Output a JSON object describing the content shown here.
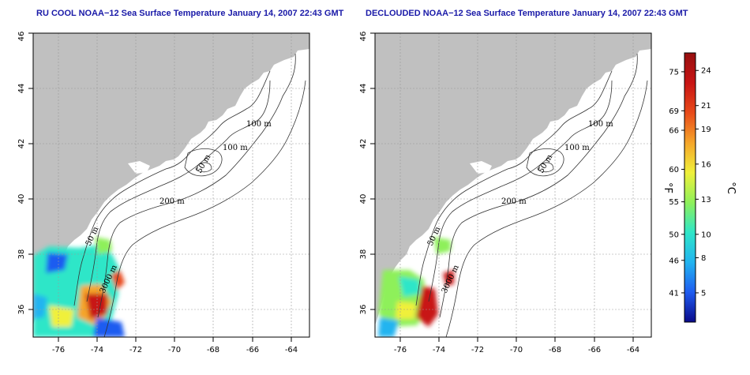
{
  "titles": {
    "left": "RU COOL NOAA−12 Sea Surface Temperature January 14, 2007 22:43 GMT",
    "right": "DECLOUDED NOAA−12 Sea Surface Temperature January 14, 2007 22:43 GMT"
  },
  "axes": {
    "lon_ticks": [
      -76,
      -74,
      -72,
      -70,
      -68,
      -66,
      -64
    ],
    "lat_ticks": [
      36,
      38,
      40,
      42,
      44,
      46
    ],
    "lon_range": [
      -77.2,
      -63.0
    ],
    "lat_range": [
      35.0,
      46.0
    ]
  },
  "contour_labels": {
    "m100a": "100 m",
    "m100b": "100 m",
    "m50a": "50 m",
    "m200": "200 m",
    "m50b": "50 m",
    "m3000": "3000 m"
  },
  "colorbar": {
    "fahrenheit_ticks": [
      75,
      69,
      66,
      60,
      55,
      50,
      46,
      41
    ],
    "celsius_ticks": [
      24,
      21,
      19,
      16,
      13,
      10,
      8,
      5
    ],
    "fahrenheit_unit": "°F",
    "celsius_unit": "°C",
    "range_c": [
      2.5,
      25.5
    ],
    "colors": [
      "#0a0a8a",
      "#1f5cf0",
      "#22b4f0",
      "#2ee6c8",
      "#8ef05a",
      "#f0f03a",
      "#f5a52a",
      "#e84a1a",
      "#c81414",
      "#961010"
    ]
  },
  "colors": {
    "land": "#c0c0c0",
    "water": "#ffffff",
    "grid": "#9a9a9a",
    "contour": "#333333",
    "title": "#1a1aa8"
  }
}
